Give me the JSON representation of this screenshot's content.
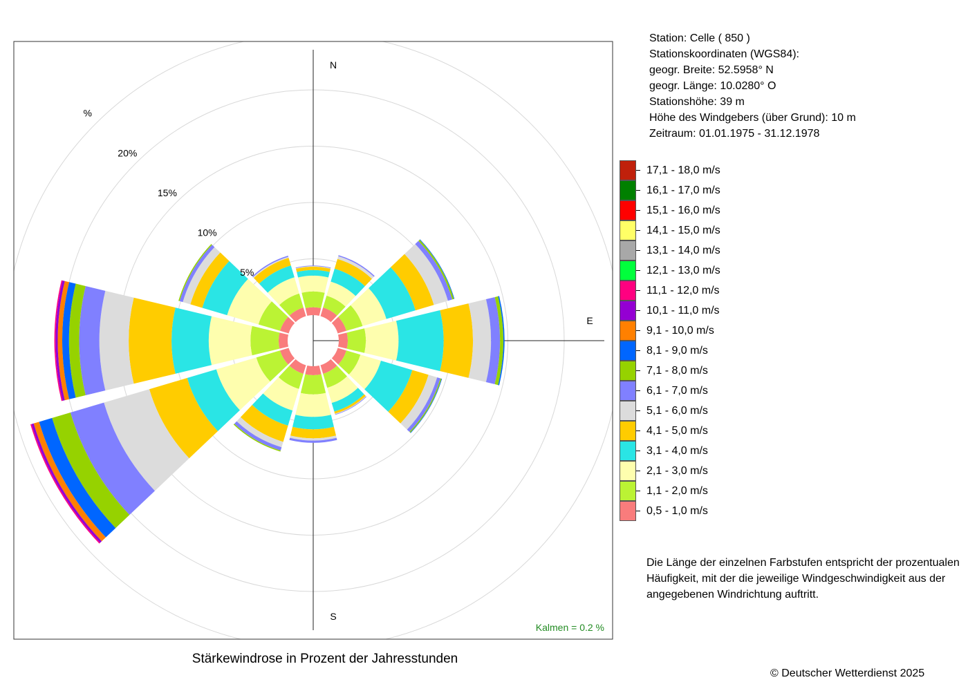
{
  "chart_data": {
    "type": "wind-rose",
    "title": "Stärkewindrose in Prozent der Jahresstunden",
    "directions": [
      "N",
      "NNE",
      "ENE",
      "E",
      "ESE",
      "SSE",
      "S",
      "SSW",
      "WSW",
      "W",
      "WNW",
      "NNW"
    ],
    "direction_angles_deg": [
      0,
      30,
      60,
      90,
      120,
      150,
      180,
      210,
      240,
      270,
      300,
      330
    ],
    "compass_labels": [
      "N",
      "E",
      "S"
    ],
    "radial_axis": {
      "unit": "%",
      "rings": [
        5,
        10,
        15,
        20,
        25
      ],
      "ring_labels": [
        "5%",
        "10%",
        "15%",
        "20%",
        "%"
      ],
      "max": 25
    },
    "speed_classes": [
      {
        "label": "0,5 - 1,0 m/s",
        "color": "#f97c7c"
      },
      {
        "label": "1,1 - 2,0 m/s",
        "color": "#bbf334"
      },
      {
        "label": "2,1 - 3,0 m/s",
        "color": "#fefeae"
      },
      {
        "label": "3,1 - 4,0 m/s",
        "color": "#2ae5e5"
      },
      {
        "label": "4,1 - 5,0 m/s",
        "color": "#ffcc00"
      },
      {
        "label": "5,1 - 6,0 m/s",
        "color": "#dcdcdc"
      },
      {
        "label": "6,1 - 7,0 m/s",
        "color": "#8080ff"
      },
      {
        "label": "7,1 - 8,0 m/s",
        "color": "#96d200"
      },
      {
        "label": "8,1 - 9,0 m/s",
        "color": "#0066ff"
      },
      {
        "label": "9,1 - 10,0 m/s",
        "color": "#ff8000"
      },
      {
        "label": "10,1 - 11,0 m/s",
        "color": "#9400d3"
      },
      {
        "label": "11,1 - 12,0 m/s",
        "color": "#ff0080"
      },
      {
        "label": "12,1 - 13,0 m/s",
        "color": "#00ff3c"
      },
      {
        "label": "13,1 - 14,0 m/s",
        "color": "#a8a8a8"
      },
      {
        "label": "14,1 - 15,0 m/s",
        "color": "#ffff66"
      },
      {
        "label": "15,1 - 16,0 m/s",
        "color": "#ff0000"
      },
      {
        "label": "16,1 - 17,0 m/s",
        "color": "#008000"
      },
      {
        "label": "17,1 - 18,0 m/s",
        "color": "#c0200b"
      }
    ],
    "series_cumulative_pct": {
      "N": [
        0.7,
        2.1,
        3.5,
        4.0,
        4.3,
        4.35,
        4.4
      ],
      "NNE": [
        0.8,
        1.9,
        3.2,
        4.4,
        5.3,
        5.55,
        5.65
      ],
      "ENE": [
        0.8,
        2.3,
        4.5,
        7.2,
        8.9,
        10.2,
        10.6,
        10.75,
        10.8
      ],
      "E": [
        0.8,
        2.4,
        5.3,
        9.3,
        11.9,
        13.5,
        14.3,
        14.6,
        14.7
      ],
      "ESE": [
        0.8,
        2.1,
        4.0,
        6.9,
        8.4,
        9.2,
        9.5,
        9.6,
        9.65
      ],
      "SSE": [
        0.8,
        2.1,
        3.5,
        4.3,
        4.5,
        4.55,
        4.6
      ],
      "S": [
        0.8,
        2.5,
        4.5,
        5.6,
        6.4,
        6.6,
        6.8
      ],
      "SSW": [
        0.8,
        2.2,
        4.2,
        5.6,
        7.1,
        7.6,
        7.9,
        8.0
      ],
      "WSW": [
        0.8,
        3.0,
        6.7,
        9.4,
        12.9,
        17.1,
        20.2,
        21.9,
        23.1,
        23.6,
        23.8,
        23.9
      ],
      "W": [
        0.8,
        3.3,
        7.0,
        10.3,
        14.1,
        16.7,
        18.5,
        19.4,
        20.0,
        20.4,
        20.6,
        20.7
      ],
      "WNW": [
        0.8,
        2.8,
        5.7,
        8.0,
        9.1,
        9.8,
        10.1,
        10.2
      ],
      "NNW": [
        0.8,
        2.1,
        3.6,
        4.7,
        5.4,
        5.5,
        5.6
      ]
    },
    "calms_label": "Kalmen  =  0.2 %",
    "calms_color": "#228b22"
  },
  "info": {
    "station": "Station:  Celle  ( 850 )",
    "coords": "Stationskoordinaten (WGS84):",
    "lat": "geogr. Breite: 52.5958° N",
    "lon": "geogr. Länge: 10.0280° O",
    "height": "Stationshöhe: 39 m",
    "sensor": "Höhe des Windgebers (über Grund): 10 m",
    "period": "Zeitraum: 01.01.1975 - 31.12.1978"
  },
  "note": {
    "l1": "Die Länge der einzelnen Farbstufen entspricht der prozentualen",
    "l2": "Häufigkeit, mit der die jeweilige Windgeschwindigkeit aus der",
    "l3": "angegebenen Windrichtung auftritt."
  },
  "copyright": "© Deutscher Wetterdienst  2025"
}
